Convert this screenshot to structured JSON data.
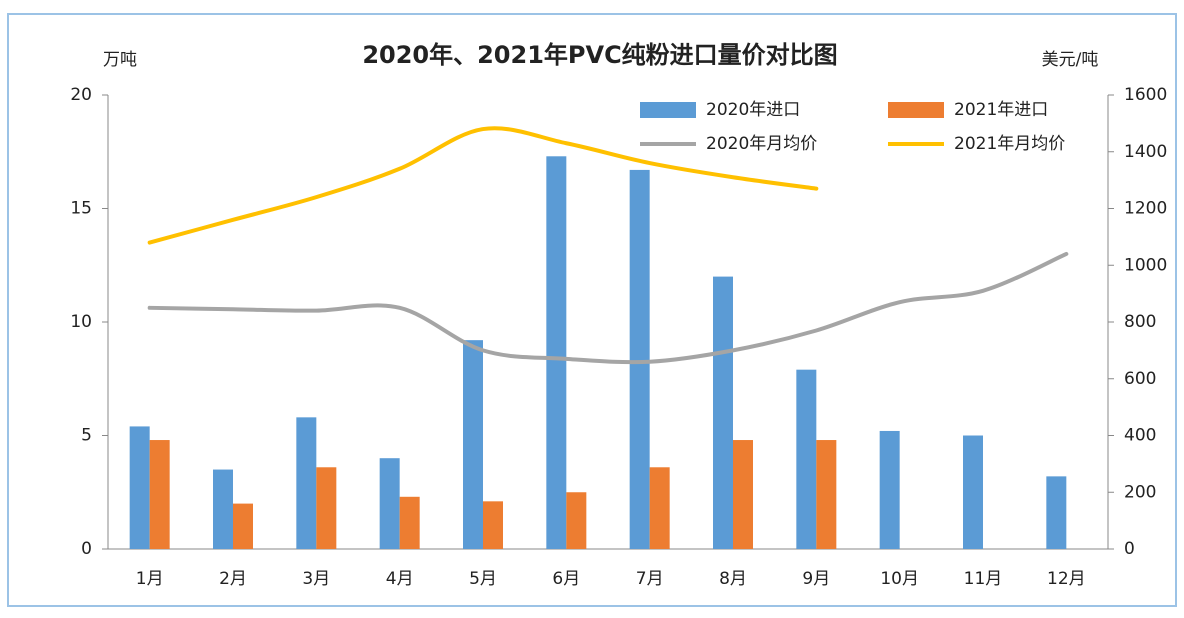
{
  "chart_data": {
    "type": "bar",
    "title": "2020年、2021年PVC纯粉进口量价对比图",
    "ylabel": "万吨",
    "y2label": "美元/吨",
    "categories": [
      "1月",
      "2月",
      "3月",
      "4月",
      "5月",
      "6月",
      "7月",
      "8月",
      "9月",
      "10月",
      "11月",
      "12月"
    ],
    "series": [
      {
        "name": "2020年进口",
        "type": "bar",
        "color": "#5b9bd5",
        "values": [
          5.4,
          3.5,
          5.8,
          4.0,
          9.2,
          17.3,
          16.7,
          12.0,
          7.9,
          5.2,
          5.0,
          3.2
        ]
      },
      {
        "name": "2021年进口",
        "type": "bar",
        "color": "#ed7d31",
        "values": [
          4.8,
          2.0,
          3.6,
          2.3,
          2.1,
          2.5,
          3.6,
          4.8,
          4.8,
          null,
          null,
          null
        ]
      },
      {
        "name": "2020年月均价",
        "type": "line",
        "axis": "y2",
        "color": "#a5a5a5",
        "values": [
          850,
          845,
          840,
          850,
          700,
          670,
          660,
          700,
          770,
          870,
          910,
          1040
        ]
      },
      {
        "name": "2021年月均价",
        "type": "line",
        "axis": "y2",
        "color": "#ffc000",
        "values": [
          1080,
          1160,
          1240,
          1340,
          1480,
          1430,
          1360,
          1310,
          1270,
          null,
          null,
          null
        ]
      }
    ],
    "ylim": [
      0,
      20
    ],
    "yticks": [
      0,
      5,
      10,
      15,
      20
    ],
    "y2lim": [
      0,
      1600
    ],
    "y2ticks": [
      0,
      200,
      400,
      600,
      800,
      1000,
      1200,
      1400,
      1600
    ],
    "legend": "upper right"
  }
}
